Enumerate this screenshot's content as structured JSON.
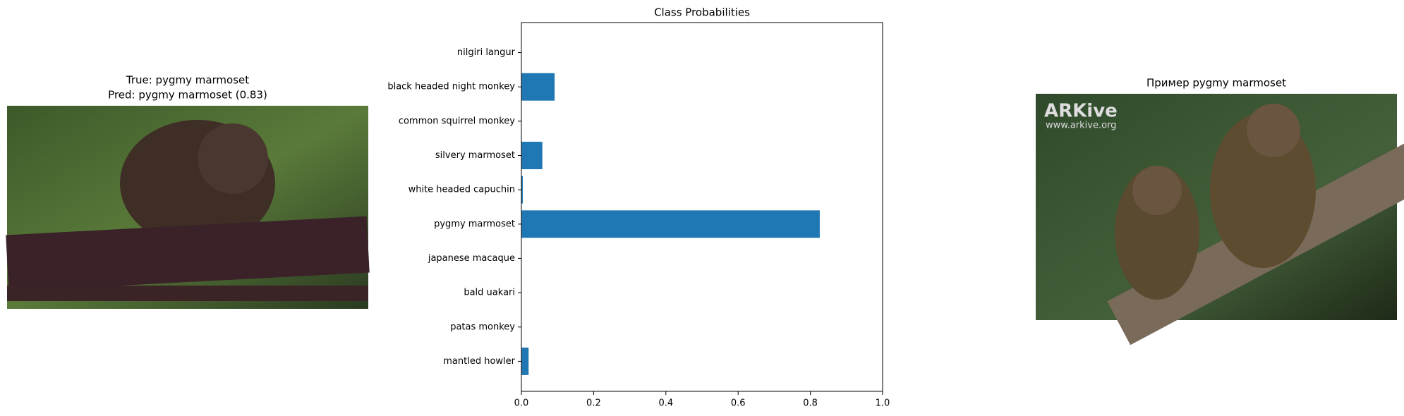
{
  "left_panel": {
    "title_lines": [
      "True: pygmy marmoset",
      "Pred: pygmy marmoset (0.83)"
    ]
  },
  "chart_data": {
    "type": "barh",
    "title": "Class Probabilities",
    "categories": [
      "nilgiri langur",
      "black headed night monkey",
      "common squirrel monkey",
      "silvery marmoset",
      "white headed capuchin",
      "pygmy marmoset",
      "japanese macaque",
      "bald uakari",
      "patas monkey",
      "mantled howler"
    ],
    "values": [
      0,
      0.092,
      0,
      0.058,
      0.004,
      0.826,
      0,
      0,
      0,
      0.02
    ],
    "color": "#1f77b4",
    "xlim": [
      0,
      1
    ],
    "xticks": [
      {
        "value": 0,
        "label": "0.0"
      },
      0.2,
      0.4,
      0.6,
      0.8,
      {
        "value": 1,
        "label": "1.0"
      }
    ],
    "grid": false
  },
  "right_panel": {
    "title": "Пример pygmy marmoset",
    "watermark": [
      "ARKive",
      "www.arkive.org"
    ]
  }
}
